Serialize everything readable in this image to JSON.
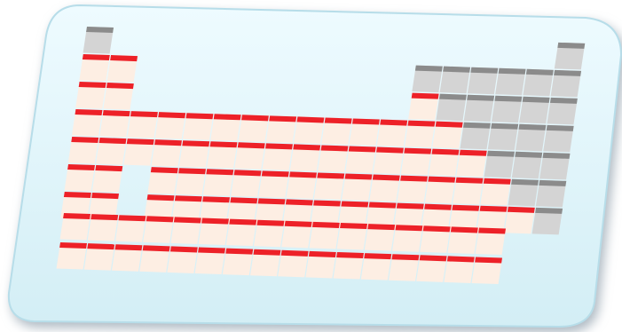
{
  "colors": {
    "card_fill_top": "#eefbff",
    "card_fill_bottom": "#d3eef5",
    "card_edge": "#b7dde9",
    "metal_body": "#fdeee3",
    "metal_stripe": "#ed2128",
    "nonmetal_body": "#d4d4d4",
    "nonmetal_stripe": "#8b8b8b"
  },
  "table": {
    "main_rows": [
      {
        "period": 1,
        "cells": [
          {
            "col": 1,
            "kind": "nonmetal"
          },
          {
            "col": 18,
            "kind": "nonmetal"
          }
        ]
      },
      {
        "period": 2,
        "cells": [
          {
            "col": 1,
            "kind": "metal"
          },
          {
            "col": 2,
            "kind": "metal"
          },
          {
            "col": 13,
            "kind": "nonmetal"
          },
          {
            "col": 14,
            "kind": "nonmetal"
          },
          {
            "col": 15,
            "kind": "nonmetal"
          },
          {
            "col": 16,
            "kind": "nonmetal"
          },
          {
            "col": 17,
            "kind": "nonmetal"
          },
          {
            "col": 18,
            "kind": "nonmetal"
          }
        ]
      },
      {
        "period": 3,
        "cells": [
          {
            "col": 1,
            "kind": "metal"
          },
          {
            "col": 2,
            "kind": "metal"
          },
          {
            "col": 13,
            "kind": "metal"
          },
          {
            "col": 14,
            "kind": "nonmetal"
          },
          {
            "col": 15,
            "kind": "nonmetal"
          },
          {
            "col": 16,
            "kind": "nonmetal"
          },
          {
            "col": 17,
            "kind": "nonmetal"
          },
          {
            "col": 18,
            "kind": "nonmetal"
          }
        ]
      },
      {
        "period": 4,
        "cells": "metal_cols_1_to_14_rest_nonmetal"
      },
      {
        "period": 5,
        "cells": "metal_cols_1_to_15_rest_nonmetal"
      },
      {
        "period": 6,
        "cells": "metal_cols_1_2_4_to_16_rest_nonmetal"
      },
      {
        "period": 7,
        "cells": "metal_cols_1_2_4_to_17_col18_nonmetal"
      }
    ],
    "f_block_rows": 2,
    "f_block_cells_per_row": 16
  }
}
